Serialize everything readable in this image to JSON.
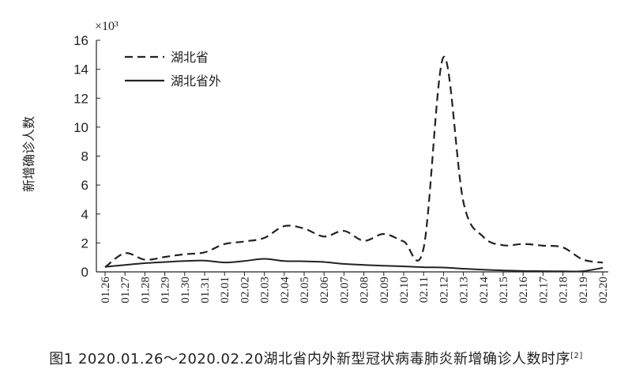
{
  "chart_data": {
    "type": "line",
    "title": "",
    "xlabel": "",
    "ylabel": "新增确诊人数",
    "y_unit": "×10³",
    "ylim": [
      0,
      16
    ],
    "yticks": [
      0,
      2,
      4,
      6,
      8,
      10,
      12,
      14,
      16
    ],
    "grid": false,
    "legend_position": "top-left",
    "categories": [
      "01.26",
      "01.27",
      "01.28",
      "01.29",
      "01.30",
      "01.31",
      "02.01",
      "02.02",
      "02.03",
      "02.04",
      "02.05",
      "02.06",
      "02.07",
      "02.08",
      "02.09",
      "02.10",
      "02.11",
      "02.12",
      "02.13",
      "02.14",
      "02.15",
      "02.16",
      "02.17",
      "02.18",
      "02.19",
      "02.20"
    ],
    "series": [
      {
        "name": "湖北省",
        "style": "dashed",
        "color": "#222222",
        "values": [
          0.32,
          1.29,
          0.84,
          1.03,
          1.22,
          1.35,
          1.92,
          2.1,
          2.35,
          3.16,
          2.99,
          2.44,
          2.83,
          2.15,
          2.62,
          2.1,
          1.64,
          14.84,
          4.82,
          2.42,
          1.84,
          1.93,
          1.81,
          1.69,
          0.85,
          0.64
        ]
      },
      {
        "name": "湖北省外",
        "style": "solid",
        "color": "#222222",
        "values": [
          0.35,
          0.48,
          0.6,
          0.68,
          0.75,
          0.78,
          0.65,
          0.75,
          0.9,
          0.75,
          0.73,
          0.68,
          0.55,
          0.48,
          0.42,
          0.38,
          0.32,
          0.3,
          0.22,
          0.15,
          0.1,
          0.06,
          0.05,
          0.04,
          0.05,
          0.28
        ]
      }
    ]
  },
  "caption": {
    "text": "图1  2020.01.26～2020.02.20湖北省内外新型冠状病毒肺炎新增确诊人数时序",
    "ref": "[2]"
  }
}
